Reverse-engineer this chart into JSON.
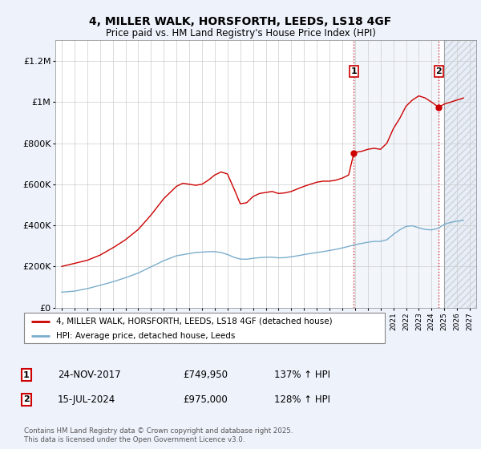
{
  "title": "4, MILLER WALK, HORSFORTH, LEEDS, LS18 4GF",
  "subtitle": "Price paid vs. HM Land Registry's House Price Index (HPI)",
  "legend_line1": "4, MILLER WALK, HORSFORTH, LEEDS, LS18 4GF (detached house)",
  "legend_line2": "HPI: Average price, detached house, Leeds",
  "transaction1_date": "24-NOV-2017",
  "transaction1_price": "£749,950",
  "transaction1_hpi": "137% ↑ HPI",
  "transaction2_date": "15-JUL-2024",
  "transaction2_price": "£975,000",
  "transaction2_hpi": "128% ↑ HPI",
  "t1_year": 2017.9,
  "t2_year": 2024.55,
  "t1_price": 749950,
  "t2_price": 975000,
  "ylim": [
    0,
    1300000
  ],
  "xlim": [
    1994.5,
    2027.5
  ],
  "yticks": [
    0,
    200000,
    400000,
    600000,
    800000,
    1000000,
    1200000
  ],
  "ytick_labels": [
    "£0",
    "£200K",
    "£400K",
    "£600K",
    "£800K",
    "£1M",
    "£1.2M"
  ],
  "background_color": "#eef2fb",
  "plot_bg": "#ffffff",
  "shaded_bg": "#dce8f5",
  "line1_color": "#cc0000",
  "line2_color": "#7aadcc",
  "footer": "Contains HM Land Registry data © Crown copyright and database right 2025.\nThis data is licensed under the Open Government Licence v3.0."
}
